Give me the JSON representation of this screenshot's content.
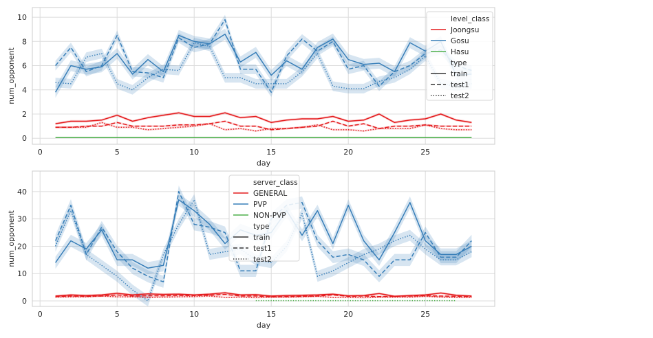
{
  "chart_data": [
    {
      "type": "line",
      "xlabel": "day",
      "ylabel": "num_opponent",
      "xlim": [
        -0.5,
        29.5
      ],
      "ylim": [
        -0.5,
        10.8
      ],
      "xticks": [
        0,
        5,
        10,
        15,
        20,
        25
      ],
      "yticks": [
        0,
        2,
        4,
        6,
        8,
        10
      ],
      "grid": true,
      "legend_position": "upper-right",
      "legend": {
        "title": "level_class",
        "hue_entries": [
          {
            "label": "Joongsu",
            "color": "#e41a1c"
          },
          {
            "label": "Gosu",
            "color": "#377eb8"
          },
          {
            "label": "Hasu",
            "color": "#4daf4a"
          }
        ],
        "style_title": "type",
        "style_entries": [
          {
            "label": "train",
            "dash": "solid"
          },
          {
            "label": "test1",
            "dash": "dashed"
          },
          {
            "label": "test2",
            "dash": "dotted"
          }
        ]
      },
      "series": [
        {
          "name": "Gosu train",
          "hue": "Gosu",
          "style": "train",
          "color": "#377eb8",
          "dash": "solid",
          "band": 0.45,
          "x": [
            1,
            2,
            3,
            4,
            5,
            6,
            7,
            8,
            9,
            10,
            11,
            12,
            13,
            14,
            15,
            16,
            17,
            18,
            19,
            20,
            21,
            22,
            23,
            24,
            25,
            26,
            27,
            28
          ],
          "y": [
            3.8,
            6.0,
            5.7,
            5.9,
            7.0,
            5.3,
            6.5,
            5.5,
            8.5,
            8.0,
            7.8,
            8.6,
            6.3,
            7.1,
            5.2,
            6.4,
            5.7,
            7.5,
            8.2,
            6.5,
            6.1,
            6.2,
            5.5,
            7.9,
            7.2,
            8.0,
            5.2,
            5.3
          ]
        },
        {
          "name": "Gosu test1",
          "hue": "Gosu",
          "style": "test1",
          "color": "#377eb8",
          "dash": "dashed",
          "band": 0.4,
          "x": [
            1,
            2,
            3,
            4,
            5,
            6,
            7,
            8,
            9,
            10,
            11,
            12,
            13,
            14,
            15,
            16,
            17,
            18,
            19,
            20,
            21,
            22,
            23,
            24,
            25,
            26,
            27,
            28
          ],
          "y": [
            6.0,
            7.5,
            5.5,
            6.0,
            8.5,
            5.5,
            5.4,
            5.0,
            8.3,
            7.5,
            7.8,
            9.8,
            5.7,
            5.7,
            3.8,
            6.8,
            8.2,
            7.2,
            8.0,
            5.7,
            6.0,
            4.3,
            5.5,
            6.0,
            7.0,
            7.3,
            6.0,
            5.6
          ]
        },
        {
          "name": "Gosu test2",
          "hue": "Gosu",
          "style": "test2",
          "color": "#377eb8",
          "dash": "dotted",
          "band": 0.4,
          "x": [
            1,
            2,
            3,
            4,
            5,
            6,
            7,
            8,
            9,
            10,
            11,
            12,
            13,
            14,
            15,
            16,
            17,
            18,
            19,
            20,
            21,
            22,
            23,
            24,
            25,
            26,
            27,
            28
          ],
          "y": [
            4.6,
            4.5,
            6.7,
            7.0,
            4.5,
            4.0,
            5.0,
            5.7,
            5.6,
            7.9,
            7.6,
            5.0,
            5.0,
            4.5,
            4.5,
            4.5,
            5.5,
            7.0,
            4.3,
            4.1,
            4.1,
            4.7,
            5.0,
            5.7,
            6.8,
            4.5,
            4.3,
            4.5
          ]
        },
        {
          "name": "Joongsu train",
          "hue": "Joongsu",
          "style": "train",
          "color": "#e41a1c",
          "dash": "solid",
          "band": 0.1,
          "x": [
            1,
            2,
            3,
            4,
            5,
            6,
            7,
            8,
            9,
            10,
            11,
            12,
            13,
            14,
            15,
            16,
            17,
            18,
            19,
            20,
            21,
            22,
            23,
            24,
            25,
            26,
            27,
            28
          ],
          "y": [
            1.2,
            1.4,
            1.4,
            1.5,
            1.9,
            1.4,
            1.7,
            1.9,
            2.1,
            1.8,
            1.8,
            2.1,
            1.7,
            1.8,
            1.3,
            1.5,
            1.6,
            1.6,
            1.8,
            1.4,
            1.5,
            2.0,
            1.3,
            1.5,
            1.6,
            2.0,
            1.5,
            1.3
          ]
        },
        {
          "name": "Joongsu test1",
          "hue": "Joongsu",
          "style": "test1",
          "color": "#e41a1c",
          "dash": "dashed",
          "band": 0.08,
          "x": [
            1,
            2,
            3,
            4,
            5,
            6,
            7,
            8,
            9,
            10,
            11,
            12,
            13,
            14,
            15,
            16,
            17,
            18,
            19,
            20,
            21,
            22,
            23,
            24,
            25,
            26,
            27,
            28
          ],
          "y": [
            0.9,
            0.9,
            1.0,
            1.0,
            1.3,
            1.0,
            1.0,
            1.0,
            1.1,
            1.1,
            1.2,
            1.4,
            1.0,
            1.0,
            0.7,
            0.8,
            0.9,
            1.0,
            1.4,
            1.0,
            1.2,
            0.8,
            1.0,
            1.0,
            1.1,
            1.0,
            1.0,
            1.0
          ]
        },
        {
          "name": "Joongsu test2",
          "hue": "Joongsu",
          "style": "test2",
          "color": "#e41a1c",
          "dash": "dotted",
          "band": 0.08,
          "x": [
            1,
            2,
            3,
            4,
            5,
            6,
            7,
            8,
            9,
            10,
            11,
            12,
            13,
            14,
            15,
            16,
            17,
            18,
            19,
            20,
            21,
            22,
            23,
            24,
            25,
            26,
            27,
            28
          ],
          "y": [
            0.9,
            0.9,
            0.9,
            1.3,
            0.9,
            0.9,
            0.7,
            0.8,
            0.9,
            1.0,
            1.2,
            0.7,
            0.8,
            0.6,
            0.8,
            0.8,
            0.9,
            1.1,
            0.7,
            0.7,
            0.6,
            0.8,
            0.8,
            0.8,
            1.1,
            0.8,
            0.7,
            0.7
          ]
        },
        {
          "name": "Hasu train",
          "hue": "Hasu",
          "style": "train",
          "color": "#4daf4a",
          "dash": "solid",
          "band": 0,
          "x": [
            1,
            28
          ],
          "y": [
            0.05,
            0.05
          ]
        }
      ]
    },
    {
      "type": "line",
      "xlabel": "day",
      "ylabel": "num_opponent",
      "xlim": [
        -0.5,
        29.5
      ],
      "ylim": [
        -2,
        47.5
      ],
      "xticks": [
        0,
        5,
        10,
        15,
        20,
        25
      ],
      "yticks": [
        0,
        10,
        20,
        30,
        40
      ],
      "grid": true,
      "legend_position": "upper-center",
      "legend": {
        "title": "server_class",
        "hue_entries": [
          {
            "label": "GENERAL",
            "color": "#e41a1c"
          },
          {
            "label": "PVP",
            "color": "#377eb8"
          },
          {
            "label": "NON-PVP",
            "color": "#4daf4a"
          }
        ],
        "style_title": "type",
        "style_entries": [
          {
            "label": "train",
            "dash": "solid"
          },
          {
            "label": "test1",
            "dash": "dashed"
          },
          {
            "label": "test2",
            "dash": "dotted"
          }
        ]
      },
      "series": [
        {
          "name": "PVP train",
          "hue": "PVP",
          "style": "train",
          "color": "#377eb8",
          "dash": "solid",
          "band": 2.2,
          "x": [
            1,
            2,
            3,
            4,
            5,
            6,
            7,
            8,
            9,
            10,
            11,
            12,
            13,
            14,
            15,
            16,
            17,
            18,
            19,
            20,
            21,
            22,
            23,
            24,
            25,
            26,
            27,
            28
          ],
          "y": [
            14,
            22,
            19,
            26,
            15,
            15,
            12,
            13,
            37,
            33,
            28,
            21,
            26,
            24,
            25,
            33,
            24,
            33,
            21,
            35,
            22,
            15,
            25,
            36,
            22,
            17,
            17,
            20
          ]
        },
        {
          "name": "PVP test1",
          "hue": "PVP",
          "style": "test1",
          "color": "#377eb8",
          "dash": "dashed",
          "band": 2.2,
          "x": [
            1,
            2,
            3,
            4,
            5,
            6,
            7,
            8,
            9,
            10,
            11,
            12,
            13,
            14,
            15,
            16,
            17,
            18,
            19,
            20,
            21,
            22,
            23,
            24,
            25,
            26,
            27,
            28
          ],
          "y": [
            22,
            35,
            17,
            27,
            18,
            12,
            9,
            7,
            40,
            28,
            27,
            25,
            11,
            11,
            30,
            35,
            36,
            22,
            16,
            17,
            15,
            9,
            15,
            15,
            25,
            16,
            16,
            22
          ]
        },
        {
          "name": "PVP test2",
          "hue": "PVP",
          "style": "test2",
          "color": "#377eb8",
          "dash": "dotted",
          "band": 2,
          "x": [
            1,
            2,
            3,
            4,
            5,
            6,
            7,
            8,
            9,
            10,
            11,
            12,
            13,
            14,
            15,
            16,
            17,
            18,
            19,
            20,
            21,
            22,
            23,
            24,
            25,
            26,
            27,
            28
          ],
          "y": [
            20,
            33,
            17,
            13,
            9,
            4,
            0,
            17,
            28,
            37,
            17,
            18,
            19,
            15,
            14,
            20,
            32,
            9,
            11,
            14,
            17,
            19,
            22,
            24,
            19,
            15,
            15,
            18
          ]
        },
        {
          "name": "GENERAL train",
          "hue": "GENERAL",
          "style": "train",
          "color": "#e41a1c",
          "dash": "solid",
          "band": 0.4,
          "x": [
            1,
            2,
            3,
            4,
            5,
            6,
            7,
            8,
            9,
            10,
            11,
            12,
            13,
            14,
            15,
            16,
            17,
            18,
            19,
            20,
            21,
            22,
            23,
            24,
            25,
            26,
            27,
            28
          ],
          "y": [
            1.8,
            2.2,
            2.0,
            2.2,
            2.8,
            2.2,
            2.6,
            2.4,
            2.5,
            2.2,
            2.5,
            3.0,
            2.2,
            2.3,
            1.8,
            2.0,
            2.1,
            2.2,
            2.5,
            1.9,
            2.0,
            2.7,
            1.7,
            2.0,
            2.2,
            2.9,
            2.1,
            1.8
          ]
        },
        {
          "name": "GENERAL test1",
          "hue": "GENERAL",
          "style": "test1",
          "color": "#e41a1c",
          "dash": "dashed",
          "band": 0.3,
          "x": [
            1,
            2,
            3,
            4,
            5,
            6,
            7,
            8,
            9,
            10,
            11,
            12,
            13,
            14,
            15,
            16,
            17,
            18,
            19,
            20,
            21,
            22,
            23,
            24,
            25,
            26,
            27,
            28
          ],
          "y": [
            1.6,
            1.8,
            1.7,
            1.8,
            2.2,
            1.8,
            1.9,
            1.9,
            2.0,
            2.0,
            2.1,
            2.4,
            1.8,
            1.8,
            1.5,
            1.6,
            1.7,
            1.8,
            2.2,
            1.7,
            1.8,
            1.6,
            1.7,
            1.8,
            1.9,
            1.8,
            1.7,
            1.6
          ]
        },
        {
          "name": "GENERAL test2",
          "hue": "GENERAL",
          "style": "test2",
          "color": "#e41a1c",
          "dash": "dotted",
          "band": 0.3,
          "x": [
            1,
            2,
            3,
            4,
            5,
            6,
            7,
            8,
            9,
            10,
            11,
            12,
            13,
            14,
            15,
            16,
            17,
            18,
            19,
            20,
            21,
            22,
            23,
            24,
            25,
            26,
            27,
            28
          ],
          "y": [
            1.4,
            1.5,
            1.5,
            1.8,
            1.5,
            1.5,
            1.3,
            1.4,
            1.5,
            1.6,
            1.8,
            1.3,
            1.4,
            1.2,
            1.4,
            1.4,
            1.5,
            1.7,
            1.3,
            1.3,
            1.2,
            1.4,
            1.4,
            1.4,
            1.7,
            1.4,
            1.3,
            1.3
          ]
        },
        {
          "name": "NON-PVP test2",
          "hue": "NON-PVP",
          "style": "test2",
          "color": "#4daf4a",
          "dash": "dotted",
          "band": 0,
          "x": [
            14,
            27
          ],
          "y": [
            0.1,
            0.1
          ]
        }
      ]
    }
  ]
}
